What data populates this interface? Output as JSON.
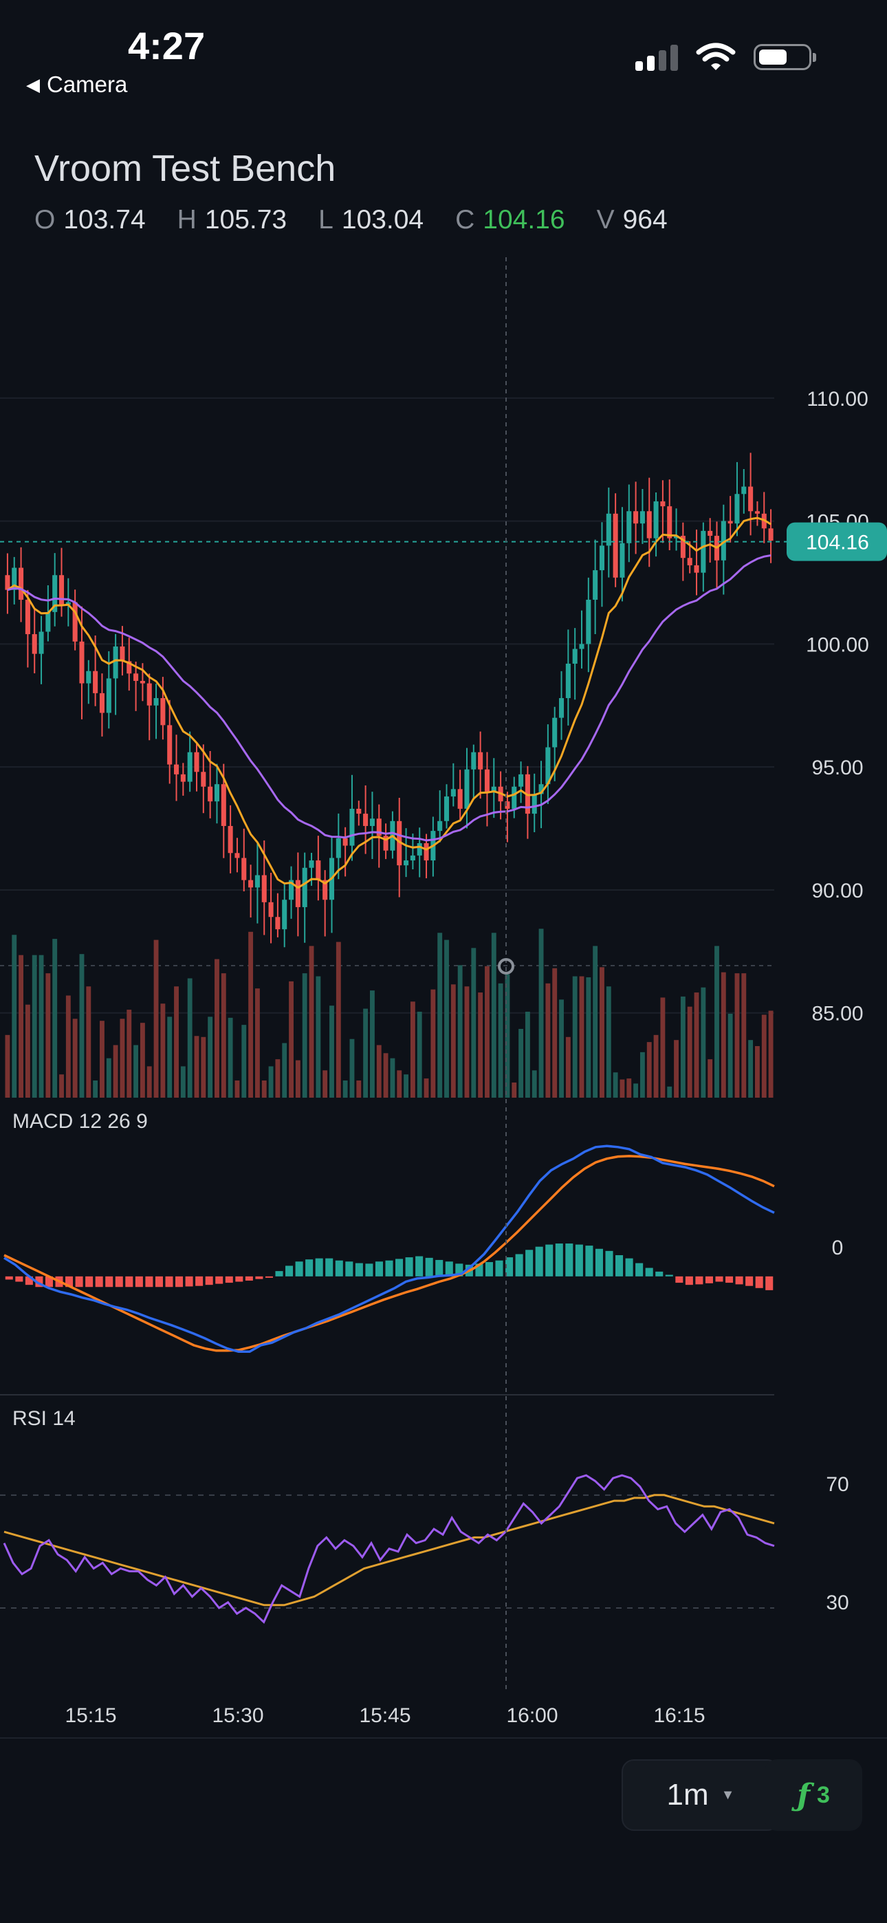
{
  "status_bar": {
    "time": "4:27",
    "back_label": "Camera"
  },
  "header": {
    "title": "Vroom Test Bench",
    "ohlc": [
      {
        "label": "O",
        "value": "103.74"
      },
      {
        "label": "H",
        "value": "105.73"
      },
      {
        "label": "L",
        "value": "103.04"
      },
      {
        "label": "C",
        "value": "104.16"
      },
      {
        "label": "V",
        "value": "964"
      }
    ]
  },
  "chart_data": {
    "type": "candlestick",
    "price_axis": {
      "ticks": [
        110,
        105,
        100,
        95,
        90,
        85
      ],
      "tick_labels": [
        "110.00",
        "105.00",
        "100.00",
        "95.00",
        "90.00",
        "85.00"
      ],
      "range": [
        82,
        115
      ]
    },
    "time_axis": {
      "tick_labels": [
        "15:15",
        "15:30",
        "15:45",
        "16:00",
        "16:15"
      ]
    },
    "last_price": 104.16,
    "last_price_label": "104.16",
    "crosshair_time": "15:58",
    "candle_closes": [
      102.2,
      103.1,
      101.8,
      100.4,
      99.6,
      100.5,
      101.3,
      102.8,
      101.6,
      101.7,
      100.1,
      98.4,
      98.9,
      98.0,
      97.2,
      98.6,
      99.9,
      99.3,
      98.8,
      98.5,
      98.4,
      97.5,
      97.8,
      96.7,
      95.1,
      94.7,
      94.4,
      95.6,
      94.8,
      94.2,
      93.6,
      94.3,
      92.6,
      91.5,
      91.3,
      90.4,
      90.1,
      90.6,
      89.5,
      88.9,
      88.4,
      89.6,
      90.4,
      89.3,
      90.9,
      91.2,
      90.4,
      89.6,
      91.3,
      92.1,
      91.8,
      93.3,
      93.1,
      92.6,
      92.9,
      92.2,
      91.6,
      92.8,
      91.0,
      91.2,
      91.4,
      91.9,
      91.2,
      92.4,
      92.8,
      93.8,
      94.1,
      93.3,
      94.9,
      95.6,
      94.9,
      94.0,
      94.2,
      93.6,
      93.3,
      94.2,
      94.7,
      93.1,
      93.9,
      94.3,
      95.8,
      97.0,
      97.8,
      99.2,
      99.8,
      100.0,
      101.8,
      103.0,
      104.0,
      105.3,
      102.7,
      104.1,
      105.4,
      104.9,
      105.4,
      104.3,
      105.8,
      105.6,
      104.3,
      104.4,
      103.5,
      103.2,
      102.9,
      104.6,
      104.4,
      103.4,
      105.0,
      104.9,
      106.1,
      106.4,
      105.4,
      105.3,
      104.7,
      104.2
    ],
    "moving_averages": [
      {
        "name": "fast",
        "color": "#f5a623",
        "period": 9
      },
      {
        "name": "slow",
        "color": "#a768f0",
        "period": 26
      }
    ],
    "volume": [
      620,
      1610,
      1410,
      920,
      1410,
      1410,
      1230,
      1570,
      230,
      1010,
      780,
      1420,
      1100,
      170,
      760,
      390,
      520,
      780,
      870,
      520,
      740,
      310,
      1560,
      930,
      800,
      1100,
      310,
      1180,
      610,
      600,
      800,
      1370,
      1230,
      790,
      170,
      720,
      1640,
      1080,
      170,
      310,
      380,
      540,
      1150,
      370,
      1230,
      1500,
      1200,
      270,
      910,
      1540,
      170,
      580,
      170,
      880,
      1060,
      520,
      440,
      390,
      270,
      230,
      950,
      850,
      190,
      1070,
      1630,
      1560,
      1120,
      1310,
      1100,
      1480,
      1040,
      1300,
      1630,
      1130,
      1220,
      150,
      680,
      850,
      270,
      1670,
      1130,
      1280,
      970,
      600,
      1200,
      1200,
      1190,
      1500,
      1290,
      1100,
      250,
      180,
      190,
      140,
      450,
      550,
      620,
      990,
      110,
      570,
      1000,
      900,
      1040,
      1090,
      380,
      1500,
      1240,
      830,
      1230,
      1230,
      570,
      510,
      820,
      860
    ],
    "volume_up": [
      false,
      true,
      false,
      false,
      true,
      true,
      false,
      true,
      false,
      false,
      false,
      true,
      false,
      true,
      false,
      true,
      false,
      false,
      false,
      true,
      false,
      false,
      false,
      false,
      true,
      false,
      true,
      true,
      false,
      false,
      true,
      false,
      false,
      true,
      false,
      true,
      false,
      false,
      false,
      true,
      false,
      true,
      false,
      false,
      true,
      false,
      true,
      false,
      true,
      false,
      true,
      true,
      false,
      true,
      true,
      false,
      false,
      true,
      false,
      true,
      false,
      true,
      false,
      false,
      true,
      true,
      false,
      true,
      false,
      true,
      false,
      false,
      true,
      true,
      true,
      false,
      true,
      true,
      true,
      true,
      false,
      false,
      true,
      false,
      true,
      false,
      true,
      true,
      false,
      true,
      true,
      false,
      false,
      true,
      true,
      false,
      false,
      false,
      true,
      false,
      true,
      false,
      false,
      true,
      false,
      true,
      false,
      true,
      false,
      false,
      true,
      false,
      false,
      false
    ],
    "macd": {
      "label": "MACD 12 26 9",
      "zero_label": "0",
      "macd_line": [
        0.35,
        0.22,
        0.04,
        -0.12,
        -0.22,
        -0.29,
        -0.34,
        -0.4,
        -0.45,
        -0.52,
        -0.58,
        -0.63,
        -0.7,
        -0.78,
        -0.85,
        -0.92,
        -1.0,
        -1.08,
        -1.17,
        -1.27,
        -1.36,
        -1.42,
        -1.42,
        -1.3,
        -1.25,
        -1.15,
        -1.05,
        -0.98,
        -0.88,
        -0.8,
        -0.72,
        -0.62,
        -0.52,
        -0.42,
        -0.32,
        -0.22,
        -0.1,
        -0.04,
        -0.02,
        0.01,
        0.02,
        0.05,
        0.22,
        0.42,
        0.68,
        0.95,
        1.22,
        1.52,
        1.8,
        2.0,
        2.12,
        2.22,
        2.35,
        2.44,
        2.46,
        2.44,
        2.4,
        2.3,
        2.25,
        2.14,
        2.1,
        2.06,
        2.0,
        1.92,
        1.8,
        1.68,
        1.55,
        1.42,
        1.3,
        1.2
      ],
      "signal_line": [
        0.4,
        0.3,
        0.2,
        0.1,
        0.0,
        -0.1,
        -0.2,
        -0.3,
        -0.4,
        -0.5,
        -0.6,
        -0.7,
        -0.8,
        -0.9,
        -1.0,
        -1.1,
        -1.2,
        -1.3,
        -1.36,
        -1.4,
        -1.4,
        -1.39,
        -1.34,
        -1.28,
        -1.2,
        -1.12,
        -1.05,
        -0.98,
        -0.91,
        -0.84,
        -0.76,
        -0.68,
        -0.6,
        -0.52,
        -0.44,
        -0.37,
        -0.3,
        -0.24,
        -0.17,
        -0.1,
        -0.04,
        0.04,
        0.14,
        0.28,
        0.45,
        0.64,
        0.84,
        1.05,
        1.26,
        1.47,
        1.68,
        1.87,
        2.03,
        2.15,
        2.22,
        2.26,
        2.27,
        2.26,
        2.24,
        2.2,
        2.16,
        2.12,
        2.09,
        2.06,
        2.03,
        1.99,
        1.94,
        1.88,
        1.8,
        1.7
      ],
      "histogram": [
        -0.06,
        -0.1,
        -0.16,
        -0.2,
        -0.2,
        -0.2,
        -0.2,
        -0.2,
        -0.2,
        -0.2,
        -0.2,
        -0.2,
        -0.2,
        -0.2,
        -0.2,
        -0.2,
        -0.2,
        -0.2,
        -0.19,
        -0.18,
        -0.16,
        -0.14,
        -0.12,
        -0.1,
        -0.08,
        -0.05,
        -0.02,
        0.1,
        0.2,
        0.28,
        0.32,
        0.34,
        0.34,
        0.3,
        0.28,
        0.25,
        0.24,
        0.28,
        0.3,
        0.33,
        0.36,
        0.38,
        0.35,
        0.31,
        0.28,
        0.24,
        0.22,
        0.24,
        0.27,
        0.3,
        0.36,
        0.42,
        0.5,
        0.56,
        0.6,
        0.62,
        0.62,
        0.6,
        0.58,
        0.52,
        0.48,
        0.4,
        0.34,
        0.25,
        0.16,
        0.09,
        0.03,
        -0.12,
        -0.16,
        -0.15,
        -0.13,
        -0.1,
        -0.12,
        -0.15,
        -0.18,
        -0.22,
        -0.26
      ],
      "range": [
        -2,
        2.8
      ]
    },
    "rsi": {
      "label": "RSI 14",
      "levels": [
        70,
        30
      ],
      "level_labels": [
        "70",
        "30"
      ],
      "rsi_line": [
        53,
        46,
        42,
        44,
        52,
        54,
        49,
        47,
        43,
        48,
        44,
        46,
        42,
        44,
        43,
        43,
        40,
        38,
        41,
        35,
        38,
        34,
        37,
        34,
        30,
        32,
        28,
        30,
        28,
        25,
        32,
        38,
        36,
        34,
        44,
        52,
        55,
        51,
        54,
        52,
        48,
        53,
        47,
        51,
        50,
        56,
        53,
        54,
        58,
        56,
        62,
        57,
        55,
        53,
        56,
        54,
        57,
        62,
        67,
        64,
        60,
        63,
        66,
        71,
        76,
        77,
        75,
        72,
        76,
        77,
        76,
        73,
        68,
        65,
        66,
        60,
        57,
        60,
        63,
        58,
        64,
        65,
        62,
        56,
        55,
        53,
        52
      ],
      "signal_line": [
        57,
        56,
        55,
        54,
        53,
        52,
        51,
        50,
        49,
        48,
        47,
        46,
        45,
        44,
        43,
        42,
        41,
        40,
        39,
        38,
        37,
        36,
        35,
        34,
        33,
        32,
        31,
        31,
        31,
        32,
        33,
        34,
        36,
        38,
        40,
        42,
        44,
        45,
        46,
        47,
        48,
        49,
        50,
        51,
        52,
        53,
        54,
        55,
        55,
        56,
        57,
        58,
        59,
        60,
        61,
        62,
        63,
        64,
        65,
        66,
        67,
        68,
        68,
        69,
        69,
        70,
        70,
        69,
        68,
        67,
        66,
        66,
        65,
        64,
        63,
        62,
        61,
        60
      ],
      "range": [
        10,
        88
      ]
    }
  },
  "toolbar": {
    "interval": "1m",
    "indicator_count": "3"
  }
}
